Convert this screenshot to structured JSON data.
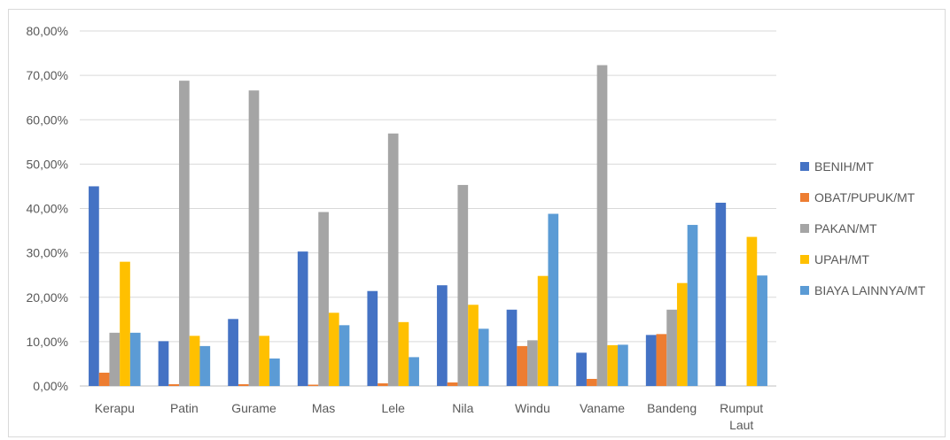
{
  "chart_data": {
    "type": "bar",
    "title": "",
    "xlabel": "",
    "ylabel": "",
    "ylim": [
      0,
      0.8
    ],
    "yticks": [
      0,
      0.1,
      0.2,
      0.3,
      0.4,
      0.5,
      0.6,
      0.7,
      0.8
    ],
    "ytick_labels": [
      "0,00%",
      "10,00%",
      "20,00%",
      "30,00%",
      "40,00%",
      "50,00%",
      "60,00%",
      "70,00%",
      "80,00%"
    ],
    "grid": true,
    "legend_position": "right",
    "categories": [
      [
        "Kerapu"
      ],
      [
        "Patin"
      ],
      [
        "Gurame"
      ],
      [
        "Mas"
      ],
      [
        "Lele"
      ],
      [
        "Nila"
      ],
      [
        "Windu"
      ],
      [
        "Vaname"
      ],
      [
        "Bandeng"
      ],
      [
        "Rumput",
        "Laut"
      ]
    ],
    "series": [
      {
        "name": "BENIH/MT",
        "color": "#4472c4",
        "values": [
          0.45,
          0.101,
          0.151,
          0.303,
          0.214,
          0.227,
          0.172,
          0.075,
          0.115,
          0.413
        ]
      },
      {
        "name": "OBAT/PUPUK/MT",
        "color": "#ed7d31",
        "values": [
          0.03,
          0.004,
          0.004,
          0.003,
          0.006,
          0.008,
          0.09,
          0.016,
          0.117,
          0
        ]
      },
      {
        "name": "PAKAN/MT",
        "color": "#a5a5a5",
        "values": [
          0.12,
          0.688,
          0.666,
          0.392,
          0.569,
          0.453,
          0.103,
          0.723,
          0.172,
          0
        ]
      },
      {
        "name": "UPAH/MT",
        "color": "#ffc000",
        "values": [
          0.28,
          0.113,
          0.113,
          0.165,
          0.144,
          0.183,
          0.248,
          0.092,
          0.232,
          0.336
        ]
      },
      {
        "name": "BIAYA LAINNYA/MT",
        "color": "#5b9bd5",
        "values": [
          0.12,
          0.09,
          0.062,
          0.137,
          0.065,
          0.129,
          0.388,
          0.093,
          0.363,
          0.249
        ]
      }
    ]
  }
}
